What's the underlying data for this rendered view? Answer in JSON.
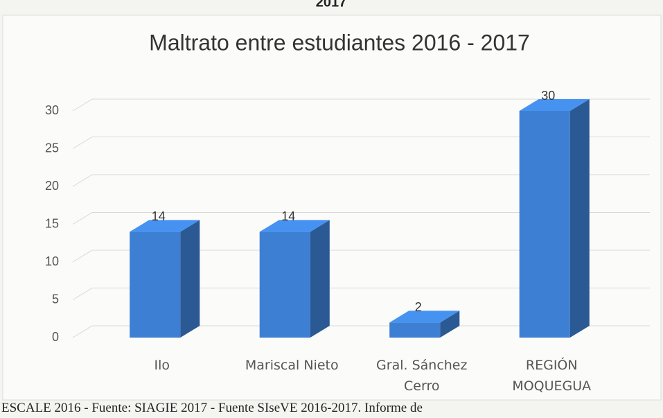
{
  "header_fragment": "2017",
  "chart_data": {
    "type": "bar3d",
    "title": "Maltrato entre estudiantes 2016 - 2017",
    "categories": [
      "Ilo",
      "Mariscal Nieto",
      "Gral. Sánchez\nCerro",
      "REGIÓN\nMOQUEGUA"
    ],
    "values": [
      14,
      14,
      2,
      30
    ],
    "color": "#3d7fd2",
    "ylim": [
      0,
      30
    ],
    "yticks": [
      0,
      5,
      10,
      15,
      20,
      25,
      30
    ],
    "grid": true
  },
  "footer": "ESCALE 2016 - Fuente: SIAGIE 2017 - Fuente SIseVE 2016-2017. Informe de"
}
